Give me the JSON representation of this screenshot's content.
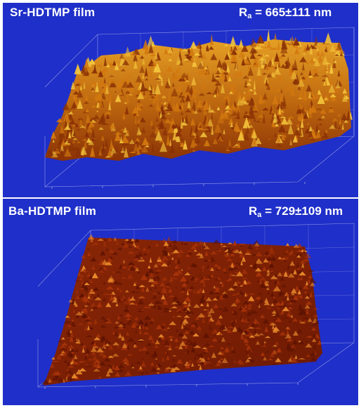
{
  "panels": [
    {
      "title": "Sr-HDTMP film",
      "roughness": {
        "symbol": "R",
        "subscript": "a",
        "value": " = 665±111 nm"
      },
      "colors": {
        "background": "#1f2fc9",
        "surface_dark": "#8a3205",
        "surface_mid": "#d2780f",
        "surface_light": "#f2c23a"
      }
    },
    {
      "title": "Ba-HDTMP film",
      "roughness": {
        "symbol": "R",
        "subscript": "a",
        "value": " = 729±109 nm"
      },
      "colors": {
        "background": "#1f2fc9",
        "surface_dark": "#5e1302",
        "surface_mid": "#a8340a",
        "surface_light": "#e88a2a"
      }
    }
  ]
}
